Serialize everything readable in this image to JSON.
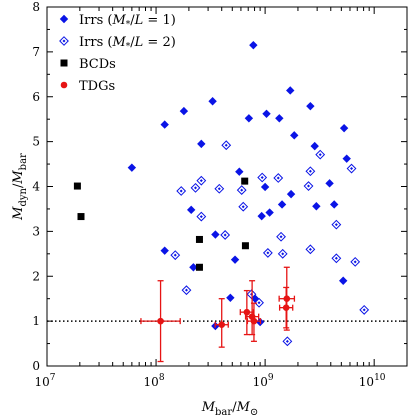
{
  "chart_data": {
    "type": "scatter",
    "title": "",
    "xlabel": "M_bar/M_⊙",
    "ylabel": "M_dyn/M_bar",
    "x_scale": "log",
    "xlim": [
      10000000,
      20000000000
    ],
    "ylim": [
      0,
      8
    ],
    "x_ticks": [
      {
        "value": 10000000,
        "mant": "10",
        "exp": "7"
      },
      {
        "value": 100000000,
        "mant": "10",
        "exp": "8"
      },
      {
        "value": 1000000000,
        "mant": "10",
        "exp": "9"
      },
      {
        "value": 10000000000,
        "mant": "10",
        "exp": "10"
      }
    ],
    "y_ticks": [
      0,
      1,
      2,
      3,
      4,
      5,
      6,
      7,
      8
    ],
    "reference_line": {
      "y": 1,
      "style": "dotted"
    },
    "grid": false,
    "legend_position": "top-left",
    "series": [
      {
        "name": "Irrs (M*/L = 1)",
        "marker": "filled-diamond",
        "color": "#0a14e6",
        "points": [
          {
            "x": 60000000,
            "y": 4.42
          },
          {
            "x": 120000000,
            "y": 5.38
          },
          {
            "x": 180000000,
            "y": 5.68
          },
          {
            "x": 120000000,
            "y": 2.57
          },
          {
            "x": 260000000,
            "y": 4.95
          },
          {
            "x": 330000000,
            "y": 5.9
          },
          {
            "x": 210000000,
            "y": 3.48
          },
          {
            "x": 580000000,
            "y": 4.33
          },
          {
            "x": 710000000,
            "y": 5.52
          },
          {
            "x": 780000000,
            "y": 7.15
          },
          {
            "x": 930000000,
            "y": 3.34
          },
          {
            "x": 1030000000,
            "y": 5.62
          },
          {
            "x": 1000000000,
            "y": 3.99
          },
          {
            "x": 1100000000,
            "y": 3.42
          },
          {
            "x": 1350000000,
            "y": 5.52
          },
          {
            "x": 1430000000,
            "y": 3.6
          },
          {
            "x": 1700000000,
            "y": 6.14
          },
          {
            "x": 1730000000,
            "y": 3.83
          },
          {
            "x": 1850000000,
            "y": 5.14
          },
          {
            "x": 2600000000,
            "y": 5.79
          },
          {
            "x": 2850000000,
            "y": 4.9
          },
          {
            "x": 2950000000,
            "y": 3.56
          },
          {
            "x": 3900000000,
            "y": 4.07
          },
          {
            "x": 4300000000,
            "y": 3.6
          },
          {
            "x": 5300000000,
            "y": 5.3
          },
          {
            "x": 5600000000,
            "y": 4.62
          },
          {
            "x": 5200000000,
            "y": 1.9
          },
          {
            "x": 220000000,
            "y": 2.2
          },
          {
            "x": 350000000,
            "y": 2.93
          },
          {
            "x": 350000000,
            "y": 0.89
          },
          {
            "x": 480000000,
            "y": 1.52
          },
          {
            "x": 810000000,
            "y": 1.5
          },
          {
            "x": 900000000,
            "y": 0.98
          },
          {
            "x": 530000000,
            "y": 2.37
          }
        ]
      },
      {
        "name": "Irrs (M*/L = 2)",
        "marker": "open-diamond",
        "color": "#0a14e6",
        "points": [
          {
            "x": 170000000,
            "y": 3.9
          },
          {
            "x": 230000000,
            "y": 3.97
          },
          {
            "x": 260000000,
            "y": 4.13
          },
          {
            "x": 260000000,
            "y": 3.33
          },
          {
            "x": 190000000,
            "y": 1.69
          },
          {
            "x": 150000000,
            "y": 2.47
          },
          {
            "x": 380000000,
            "y": 3.95
          },
          {
            "x": 440000000,
            "y": 4.92
          },
          {
            "x": 430000000,
            "y": 2.92
          },
          {
            "x": 610000000,
            "y": 3.92
          },
          {
            "x": 630000000,
            "y": 3.55
          },
          {
            "x": 750000000,
            "y": 1.6
          },
          {
            "x": 940000000,
            "y": 4.2
          },
          {
            "x": 1060000000,
            "y": 2.52
          },
          {
            "x": 1320000000,
            "y": 4.19
          },
          {
            "x": 1400000000,
            "y": 2.88
          },
          {
            "x": 1450000000,
            "y": 2.5
          },
          {
            "x": 1600000000,
            "y": 0.55
          },
          {
            "x": 2600000000,
            "y": 4.34
          },
          {
            "x": 2500000000,
            "y": 4.01
          },
          {
            "x": 2600000000,
            "y": 2.6
          },
          {
            "x": 3200000000,
            "y": 4.71
          },
          {
            "x": 4500000000,
            "y": 3.15
          },
          {
            "x": 4500000000,
            "y": 2.4
          },
          {
            "x": 6200000000,
            "y": 4.4
          },
          {
            "x": 6700000000,
            "y": 2.32
          },
          {
            "x": 8100000000,
            "y": 1.25
          },
          {
            "x": 880000000,
            "y": 1.41
          }
        ]
      },
      {
        "name": "BCDs",
        "marker": "filled-square",
        "color": "#000000",
        "points": [
          {
            "x": 19000000,
            "y": 4.01
          },
          {
            "x": 20500000,
            "y": 3.33
          },
          {
            "x": 250000000,
            "y": 2.82
          },
          {
            "x": 250000000,
            "y": 2.2
          },
          {
            "x": 650000000,
            "y": 4.12
          },
          {
            "x": 660000000,
            "y": 2.68
          }
        ]
      },
      {
        "name": "TDGs",
        "marker": "filled-circle",
        "color": "#e61414",
        "points": [
          {
            "x": 110000000,
            "y": 1.0,
            "y_err": 0.9,
            "x_err_dex": 0.18
          },
          {
            "x": 400000000,
            "y": 0.92,
            "y_err_low": 0.5,
            "y_err_high": 0.58,
            "x_err_dex": 0.06
          },
          {
            "x": 680000000,
            "y": 1.2,
            "y_err_low": 0.5,
            "y_err_high": 0.48,
            "x_err_dex": 0.06
          },
          {
            "x": 760000000,
            "y": 1.1,
            "y_err_low": 0.4,
            "y_err_high": 0.8,
            "x_err_dex": 0.06
          },
          {
            "x": 790000000,
            "y": 1.0,
            "y_err_low": 0.45,
            "y_err_high": 0.4,
            "x_err_dex": 0.06
          },
          {
            "x": 1580000000,
            "y": 1.5,
            "y_err": 0.7,
            "x_err_dex": 0.07
          },
          {
            "x": 1560000000,
            "y": 1.3,
            "y_err": 0.45,
            "x_err_dex": 0.06
          }
        ]
      }
    ]
  }
}
